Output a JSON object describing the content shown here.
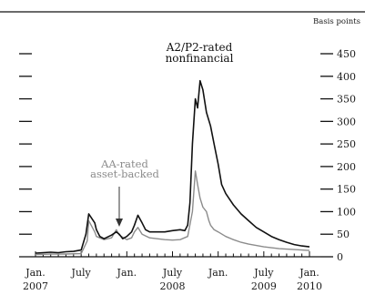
{
  "chart_data": {
    "type": "line",
    "units_label": "Basis points",
    "ylim": [
      0,
      450
    ],
    "y_ticks": [
      0,
      50,
      100,
      150,
      200,
      250,
      300,
      350,
      400,
      450
    ],
    "y_tick_labels": [
      "0",
      "50",
      "100",
      "150",
      "200",
      "250",
      "300",
      "350",
      "400",
      "450"
    ],
    "xlim": [
      "2007-01",
      "2010-01"
    ],
    "x_tick_labels": [
      {
        "month": "Jan.",
        "year": "2007",
        "date": "2007-01"
      },
      {
        "month": "July",
        "year": "",
        "date": "2007-07"
      },
      {
        "month": "Jan.",
        "year": "",
        "date": "2008-01"
      },
      {
        "month": "July",
        "year": "2008",
        "date": "2008-07"
      },
      {
        "month": "Jan.",
        "year": "",
        "date": "2009-01"
      },
      {
        "month": "July",
        "year": "2009",
        "date": "2009-07"
      },
      {
        "month": "Jan.",
        "year": "2010",
        "date": "2010-01"
      }
    ],
    "grid": false,
    "annotations": [
      {
        "id": "a2p2",
        "lines": [
          "A2/P2-rated",
          "nonfinancial"
        ],
        "series": "a2p2"
      },
      {
        "id": "aa",
        "lines": [
          "AA-rated",
          "asset-backed"
        ],
        "series": "aa"
      }
    ],
    "series": [
      {
        "id": "a2p2",
        "color": "#111111",
        "points": [
          [
            "2007-01",
            8
          ],
          [
            "2007-02",
            9
          ],
          [
            "2007-03",
            10
          ],
          [
            "2007-04",
            9
          ],
          [
            "2007-05",
            11
          ],
          [
            "2007-06",
            12
          ],
          [
            "2007-07",
            15
          ],
          [
            "2007-07-20",
            50
          ],
          [
            "2007-08",
            95
          ],
          [
            "2007-08-25",
            75
          ],
          [
            "2007-09",
            60
          ],
          [
            "2007-09-15",
            45
          ],
          [
            "2007-10",
            40
          ],
          [
            "2007-11",
            48
          ],
          [
            "2007-11-20",
            55
          ],
          [
            "2007-12",
            50
          ],
          [
            "2007-12-15",
            40
          ],
          [
            "2008-01",
            45
          ],
          [
            "2008-01-20",
            55
          ],
          [
            "2008-02",
            70
          ],
          [
            "2008-02-15",
            92
          ],
          [
            "2008-03",
            75
          ],
          [
            "2008-03-15",
            60
          ],
          [
            "2008-04",
            55
          ],
          [
            "2008-05",
            55
          ],
          [
            "2008-06",
            55
          ],
          [
            "2008-07",
            58
          ],
          [
            "2008-08",
            60
          ],
          [
            "2008-08-20",
            58
          ],
          [
            "2008-09",
            70
          ],
          [
            "2008-09-10",
            120
          ],
          [
            "2008-09-20",
            250
          ],
          [
            "2008-10",
            350
          ],
          [
            "2008-10-10",
            330
          ],
          [
            "2008-10-20",
            390
          ],
          [
            "2008-11",
            370
          ],
          [
            "2008-11-15",
            320
          ],
          [
            "2008-12",
            290
          ],
          [
            "2008-12-15",
            250
          ],
          [
            "2009-01",
            205
          ],
          [
            "2009-01-15",
            160
          ],
          [
            "2009-02",
            140
          ],
          [
            "2009-03",
            115
          ],
          [
            "2009-04",
            95
          ],
          [
            "2009-05",
            80
          ],
          [
            "2009-06",
            65
          ],
          [
            "2009-07",
            55
          ],
          [
            "2009-08",
            45
          ],
          [
            "2009-09",
            38
          ],
          [
            "2009-10",
            32
          ],
          [
            "2009-11",
            27
          ],
          [
            "2009-12",
            24
          ],
          [
            "2010-01",
            22
          ]
        ]
      },
      {
        "id": "aa",
        "color": "#8c8c8c",
        "points": [
          [
            "2007-01",
            5
          ],
          [
            "2007-03",
            6
          ],
          [
            "2007-05",
            6
          ],
          [
            "2007-07",
            7
          ],
          [
            "2007-07-25",
            35
          ],
          [
            "2007-08",
            80
          ],
          [
            "2007-08-25",
            55
          ],
          [
            "2007-09",
            45
          ],
          [
            "2007-10",
            38
          ],
          [
            "2007-11",
            42
          ],
          [
            "2007-11-20",
            60
          ],
          [
            "2007-12",
            48
          ],
          [
            "2008-01",
            38
          ],
          [
            "2008-01-20",
            42
          ],
          [
            "2008-02",
            55
          ],
          [
            "2008-02-15",
            65
          ],
          [
            "2008-03",
            50
          ],
          [
            "2008-04",
            42
          ],
          [
            "2008-05",
            40
          ],
          [
            "2008-06",
            38
          ],
          [
            "2008-07",
            37
          ],
          [
            "2008-08",
            38
          ],
          [
            "2008-09",
            45
          ],
          [
            "2008-09-20",
            100
          ],
          [
            "2008-10",
            190
          ],
          [
            "2008-10-10",
            160
          ],
          [
            "2008-10-20",
            130
          ],
          [
            "2008-11",
            110
          ],
          [
            "2008-11-15",
            100
          ],
          [
            "2008-11-25",
            80
          ],
          [
            "2008-12",
            70
          ],
          [
            "2008-12-15",
            60
          ],
          [
            "2009-01",
            55
          ],
          [
            "2009-02",
            45
          ],
          [
            "2009-03",
            38
          ],
          [
            "2009-04",
            32
          ],
          [
            "2009-05",
            28
          ],
          [
            "2009-06",
            25
          ],
          [
            "2009-07",
            22
          ],
          [
            "2009-08",
            20
          ],
          [
            "2009-09",
            18
          ],
          [
            "2009-10",
            17
          ],
          [
            "2009-11",
            16
          ],
          [
            "2009-12",
            15
          ],
          [
            "2010-01",
            14
          ]
        ]
      }
    ]
  }
}
